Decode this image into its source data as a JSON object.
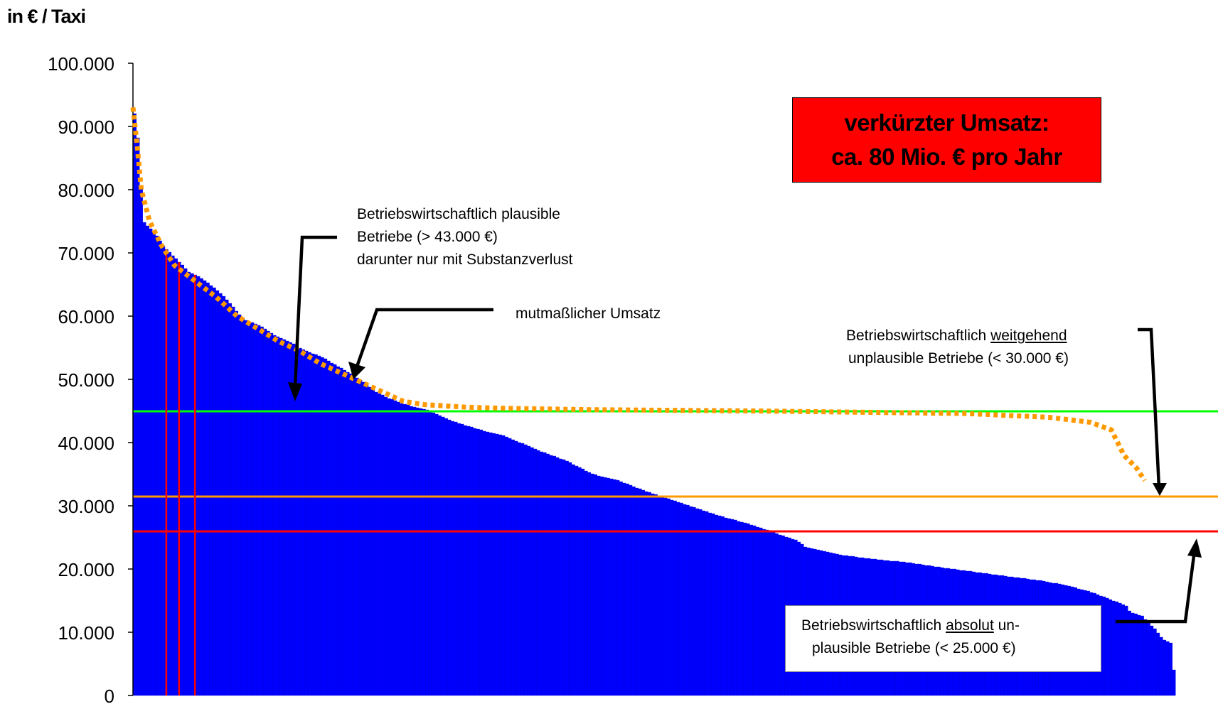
{
  "chart_data": {
    "type": "bar",
    "title": "",
    "ylabel": "in € / Taxi",
    "xlabel": "",
    "ylim": [
      0,
      100000
    ],
    "yticks": [
      "0",
      "10.000",
      "20.000",
      "30.000",
      "40.000",
      "50.000",
      "60.000",
      "70.000",
      "80.000",
      "90.000",
      "100.000"
    ],
    "grid": false,
    "legend": "none",
    "bar_color": "#0000ff",
    "bar_count": 328,
    "bar_profile": [
      [
        0,
        92000
      ],
      [
        2,
        87000
      ],
      [
        4,
        75000
      ],
      [
        7,
        74000
      ],
      [
        10,
        73000
      ],
      [
        14,
        71000
      ],
      [
        20,
        69000
      ],
      [
        26,
        67000
      ],
      [
        32,
        66000
      ],
      [
        40,
        64000
      ],
      [
        46,
        62000
      ],
      [
        52,
        59500
      ],
      [
        60,
        58500
      ],
      [
        67,
        57000
      ],
      [
        74,
        56000
      ],
      [
        82,
        54500
      ],
      [
        90,
        53500
      ],
      [
        98,
        52000
      ],
      [
        108,
        50000
      ],
      [
        116,
        48000
      ],
      [
        122,
        47000
      ],
      [
        130,
        46000
      ],
      [
        140,
        45200
      ],
      [
        148,
        44000
      ],
      [
        156,
        43000
      ],
      [
        166,
        42000
      ],
      [
        178,
        41000
      ],
      [
        192,
        39000
      ],
      [
        208,
        37000
      ],
      [
        220,
        35000
      ],
      [
        232,
        34000
      ],
      [
        248,
        32000
      ],
      [
        262,
        30500
      ],
      [
        280,
        28500
      ],
      [
        296,
        27000
      ],
      [
        305,
        26000
      ],
      [
        318,
        24500
      ],
      [
        322,
        23500
      ],
      [
        328,
        23000
      ],
      [
        340,
        22200
      ],
      [
        356,
        21500
      ],
      [
        372,
        21000
      ],
      [
        388,
        20200
      ],
      [
        404,
        19500
      ],
      [
        420,
        18800
      ],
      [
        434,
        18200
      ],
      [
        446,
        17500
      ],
      [
        458,
        16500
      ],
      [
        462,
        16000
      ],
      [
        466,
        15500
      ],
      [
        476,
        14200
      ],
      [
        478,
        13200
      ],
      [
        484,
        12500
      ],
      [
        490,
        10500
      ],
      [
        494,
        8800
      ],
      [
        498,
        8300
      ],
      [
        499,
        4000
      ]
    ],
    "red_marker_bars": [
      10,
      14,
      19
    ],
    "series": [
      {
        "name": "mutmaßlicher Umsatz",
        "style": "dotted",
        "color": "#ff9900",
        "x": [
          0,
          2,
          4,
          8,
          14,
          20,
          30,
          40,
          50,
          60,
          70,
          80,
          90,
          100,
          110,
          120,
          130,
          140,
          150,
          160,
          180,
          220,
          300,
          400,
          440,
          460,
          470,
          476,
          482,
          486
        ],
        "values": [
          93000,
          87000,
          80000,
          75000,
          71000,
          68000,
          65500,
          63000,
          60000,
          58000,
          56000,
          54500,
          52500,
          51000,
          49500,
          48000,
          46500,
          46000,
          45800,
          45600,
          45400,
          45200,
          45000,
          44600,
          44000,
          43200,
          42000,
          38000,
          36000,
          34000
        ]
      }
    ],
    "reference_lines": [
      {
        "value": 45000,
        "color": "#00ff00"
      },
      {
        "value": 31500,
        "color": "#ff9900"
      },
      {
        "value": 26000,
        "color": "#ff0000"
      }
    ]
  },
  "annotations": {
    "red_box": {
      "line1": "verkürzter Umsatz:",
      "line2": "ca. 80 Mio. € pro Jahr"
    },
    "plausible": {
      "line1": "Betriebswirtschaftlich plausible",
      "line2": "Betriebe (> 43.000 €)",
      "line3": "darunter nur mit Substanzverlust"
    },
    "mutmasslich": "mutmaßlicher Umsatz",
    "weitgehend": {
      "line1_pre": "Betriebswirtschaftlich ",
      "line1_u": "weitgehend",
      "line2": "unplausible Betriebe (< 30.000 €)"
    },
    "absolut": {
      "line1_pre": "Betriebswirtschaftlich ",
      "line1_u": "absolut",
      "line1_post": " un-",
      "line2": "plausible Betriebe (< 25.000 €)"
    }
  }
}
